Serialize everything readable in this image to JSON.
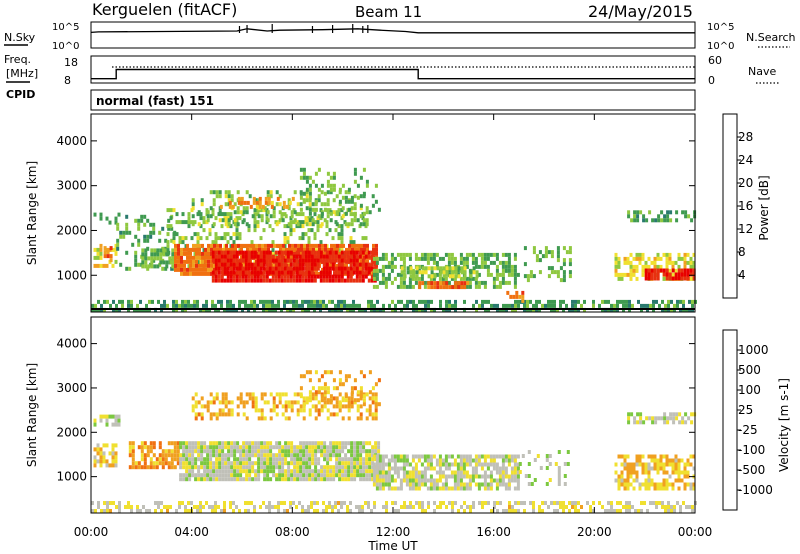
{
  "header": {
    "station": "Kerguelen (fitACF)",
    "beam": "Beam 11",
    "date": "24/May/2015"
  },
  "top_panels": {
    "nsky_label": "N.Sky",
    "nsky_ticks": [
      "10^5",
      "10^0"
    ],
    "nsearch_label": "N.Search",
    "freq_label_line1": "Freq.",
    "freq_label_line2": "[MHz]",
    "freq_ticks": [
      "18",
      "8"
    ],
    "nave_label": "Nave",
    "nave_ticks": [
      "60",
      "0"
    ],
    "cpid_label": "CPID",
    "cpid_value": "normal (fast) 151"
  },
  "colors": {
    "power_scale": [
      "#0000ff",
      "#1f4fb0",
      "#2a7a6e",
      "#3f9a50",
      "#8fc840",
      "#f0e030",
      "#f0a020",
      "#f07010",
      "#e83010",
      "#e80000"
    ],
    "velocity_scale": [
      "#0000ff",
      "#1f4fb0",
      "#2a7a6e",
      "#3f9a50",
      "#7cc840",
      "#c0c0b8",
      "#f0e030",
      "#f0a020",
      "#f07010",
      "#e83010",
      "#e80000"
    ],
    "ground_scatter": "#c4c4bc"
  },
  "chart_data": [
    {
      "type": "heatmap",
      "title": "Power",
      "xlabel": "Time UT",
      "ylabel": "Slant Range [km]",
      "xlim": [
        "00:00",
        "24:00"
      ],
      "ylim": [
        180,
        4600
      ],
      "x_ticks": [
        "00:00",
        "04:00",
        "08:00",
        "12:00",
        "16:00",
        "20:00",
        "00:00"
      ],
      "y_ticks": [
        "1000",
        "2000",
        "3000",
        "4000"
      ],
      "colorbar": {
        "label": "Power [dB]",
        "ticks": [
          "4",
          "8",
          "12",
          "16",
          "20",
          "24",
          "28"
        ],
        "range": [
          0,
          30
        ]
      },
      "regions": [
        {
          "t0": 0,
          "t1": 24,
          "r0": 200,
          "r1": 450,
          "value": 10,
          "density": 0.6
        },
        {
          "t0": 0.1,
          "t1": 1.0,
          "r0": 1250,
          "r1": 1700,
          "value": 17,
          "density": 0.55
        },
        {
          "t0": 0.5,
          "t1": 0.85,
          "r0": 1350,
          "r1": 1650,
          "value": 22,
          "density": 0.7
        },
        {
          "t0": 0.1,
          "t1": 1.2,
          "r0": 2150,
          "r1": 2400,
          "value": 12,
          "density": 0.35
        },
        {
          "t0": 1.0,
          "t1": 3.3,
          "r0": 1100,
          "r1": 2350,
          "value": 11,
          "density": 0.3
        },
        {
          "t0": 2.0,
          "t1": 3.2,
          "r0": 1200,
          "r1": 1600,
          "value": 12,
          "density": 0.75
        },
        {
          "t0": 3.0,
          "t1": 10.9,
          "r0": 1200,
          "r1": 2500,
          "value": 13,
          "density": 0.35
        },
        {
          "t0": 3.3,
          "t1": 11.4,
          "r0": 1000,
          "r1": 1700,
          "value": 23,
          "density": 0.88
        },
        {
          "t0": 4.8,
          "t1": 11.3,
          "r0": 900,
          "r1": 1550,
          "value": 27,
          "density": 0.9
        },
        {
          "t0": 4.0,
          "t1": 11.2,
          "r0": 2100,
          "r1": 2900,
          "value": 13,
          "density": 0.3
        },
        {
          "t0": 5.0,
          "t1": 8.2,
          "r0": 2500,
          "r1": 2750,
          "value": 20,
          "density": 0.4
        },
        {
          "t0": 8.3,
          "t1": 11.5,
          "r0": 2400,
          "r1": 3400,
          "value": 12,
          "density": 0.22
        },
        {
          "t0": 11.2,
          "t1": 17.0,
          "r0": 700,
          "r1": 1500,
          "value": 12,
          "density": 0.55
        },
        {
          "t0": 12.3,
          "t1": 15.3,
          "r0": 950,
          "r1": 1200,
          "value": 14,
          "density": 0.75
        },
        {
          "t0": 13.0,
          "t1": 15.0,
          "r0": 700,
          "r1": 870,
          "value": 23,
          "density": 0.8
        },
        {
          "t0": 17.2,
          "t1": 19.0,
          "r0": 850,
          "r1": 1650,
          "value": 12,
          "density": 0.3
        },
        {
          "t0": 16.5,
          "t1": 17.2,
          "r0": 400,
          "r1": 650,
          "value": 22,
          "density": 0.5
        },
        {
          "t0": 20.8,
          "t1": 24,
          "r0": 900,
          "r1": 1500,
          "value": 16,
          "density": 0.55
        },
        {
          "t0": 22.0,
          "t1": 24,
          "r0": 900,
          "r1": 1150,
          "value": 27,
          "density": 0.85
        },
        {
          "t0": 21.3,
          "t1": 24,
          "r0": 2200,
          "r1": 2450,
          "value": 11,
          "density": 0.55
        }
      ]
    },
    {
      "type": "heatmap",
      "title": "Velocity",
      "xlabel": "Time UT",
      "ylabel": "Slant Range [km]",
      "xlim": [
        "00:00",
        "24:00"
      ],
      "ylim": [
        180,
        4600
      ],
      "x_ticks": [
        "00:00",
        "04:00",
        "08:00",
        "12:00",
        "16:00",
        "20:00",
        "00:00"
      ],
      "y_ticks": [
        "1000",
        "2000",
        "3000",
        "4000"
      ],
      "colorbar": {
        "label": "Velocity [m s-1]",
        "ticks": [
          "1000",
          "500",
          "100",
          "25",
          "-25",
          "-100",
          "-500",
          "-1000"
        ],
        "range": [
          -1000,
          1000
        ]
      },
      "regions": [
        {
          "t0": 0,
          "t1": 24,
          "r0": 200,
          "r1": 450,
          "value": -100,
          "density": 0.5
        },
        {
          "t0": 0.1,
          "t1": 1.0,
          "r0": 1250,
          "r1": 1750,
          "value": -200,
          "density": 0.6
        },
        {
          "t0": 0.1,
          "t1": 1.1,
          "r0": 2150,
          "r1": 2400,
          "value": 0,
          "density": 0.55
        },
        {
          "t0": 1.5,
          "t1": 3.5,
          "r0": 1200,
          "r1": 1800,
          "value": -400,
          "density": 0.7
        },
        {
          "t0": 3.5,
          "t1": 11.4,
          "r0": 900,
          "r1": 1800,
          "value": 0,
          "density": 0.92
        },
        {
          "t0": 4.0,
          "t1": 11.3,
          "r0": 2300,
          "r1": 2900,
          "value": -300,
          "density": 0.45
        },
        {
          "t0": 8.3,
          "t1": 11.5,
          "r0": 2600,
          "r1": 3400,
          "value": -300,
          "density": 0.3
        },
        {
          "t0": 11.2,
          "t1": 17.0,
          "r0": 700,
          "r1": 1500,
          "value": 0,
          "density": 0.75
        },
        {
          "t0": 17.0,
          "t1": 19.0,
          "r0": 850,
          "r1": 1600,
          "value": 50,
          "density": 0.25
        },
        {
          "t0": 20.8,
          "t1": 24,
          "r0": 700,
          "r1": 1500,
          "value": -250,
          "density": 0.6
        },
        {
          "t0": 21.3,
          "t1": 24,
          "r0": 2200,
          "r1": 2450,
          "value": 0,
          "density": 0.55
        }
      ]
    },
    {
      "type": "line",
      "title": "N.Sky",
      "x_hours": [
        0,
        0.3,
        5.8,
        6.2,
        7.0,
        7.5,
        9.2,
        10.6,
        11.5,
        12.5,
        13,
        24
      ],
      "values": [
        3.1,
        3.2,
        3.4,
        3.9,
        3.4,
        3.6,
        3.7,
        3.9,
        3.6,
        3.3,
        3.0,
        3.0
      ],
      "ylim": [
        0,
        5
      ]
    },
    {
      "type": "line",
      "title": "Freq. [MHz]",
      "x_hours": [
        0,
        1.0,
        1.0,
        13.0,
        13.0,
        24
      ],
      "values": [
        9.0,
        9.0,
        13.0,
        13.0,
        9.0,
        9.0
      ],
      "ylim": [
        8,
        18
      ]
    }
  ]
}
